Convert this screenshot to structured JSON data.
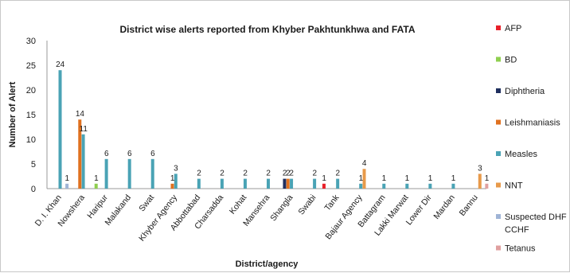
{
  "chart_data": {
    "type": "bar",
    "title": "District wise alerts reported from Khyber Pakhtunkhwa and FATA",
    "xlabel": "District/agency",
    "ylabel": "Number of Alert",
    "ylim": [
      0,
      30
    ],
    "yticks": [
      "0",
      "5",
      "10",
      "15",
      "20",
      "25",
      "30"
    ],
    "grid": false,
    "legend_position": "right",
    "categories": [
      "D. I. Khan",
      "Nowshera",
      "Haripur",
      "Malakand",
      "Swat",
      "Khyber Agency",
      "Abbottabad",
      "Charsadda",
      "Kohat",
      "Mansehra",
      "Shangla",
      "Swabi",
      "Tank",
      "Bajaur Agency",
      "Battagram",
      "Lakki Marwat",
      "Lower Dir",
      "Mardan",
      "Bannu"
    ],
    "series": [
      {
        "name": "AFP",
        "color": "#e8202a",
        "values": [
          0,
          0,
          0,
          0,
          0,
          0,
          0,
          0,
          0,
          0,
          0,
          0,
          1,
          0,
          0,
          0,
          0,
          0,
          0
        ]
      },
      {
        "name": "BD",
        "color": "#8fcf4f",
        "values": [
          0,
          0,
          1,
          0,
          0,
          0,
          0,
          0,
          0,
          0,
          0,
          0,
          0,
          0,
          0,
          0,
          0,
          0,
          0
        ]
      },
      {
        "name": "Diphtheria",
        "color": "#1f2f5e",
        "values": [
          0,
          0,
          0,
          0,
          0,
          0,
          0,
          0,
          0,
          0,
          2,
          0,
          0,
          0,
          0,
          0,
          0,
          0,
          0
        ]
      },
      {
        "name": "Leishmaniasis",
        "color": "#e0711f",
        "values": [
          0,
          14,
          0,
          0,
          0,
          1,
          0,
          0,
          0,
          0,
          2,
          0,
          0,
          0,
          0,
          0,
          0,
          0,
          0
        ]
      },
      {
        "name": "Measles",
        "color": "#4aa3b5",
        "values": [
          24,
          11,
          6,
          6,
          6,
          3,
          2,
          2,
          2,
          2,
          2,
          2,
          2,
          1,
          1,
          1,
          1,
          1,
          0
        ]
      },
      {
        "name": "NNT",
        "color": "#e89a4a",
        "values": [
          0,
          0,
          0,
          0,
          0,
          0,
          0,
          0,
          0,
          0,
          0,
          0,
          0,
          4,
          0,
          0,
          0,
          0,
          3
        ]
      },
      {
        "name": "Suspected DHF CCHF",
        "color": "#9fb4d6",
        "values": [
          1,
          0,
          0,
          0,
          0,
          0,
          0,
          0,
          0,
          0,
          0,
          0,
          0,
          0,
          0,
          0,
          0,
          0,
          0
        ]
      },
      {
        "name": "Tetanus",
        "color": "#e0a0a0",
        "values": [
          0,
          0,
          0,
          0,
          0,
          0,
          0,
          0,
          0,
          0,
          0,
          0,
          0,
          0,
          0,
          0,
          0,
          0,
          1
        ]
      }
    ],
    "data_labels": [
      {
        "category": "D. I. Khan",
        "series": "Measles",
        "text": "24"
      },
      {
        "category": "D. I. Khan",
        "series": "Suspected DHF CCHF",
        "text": "1"
      },
      {
        "category": "Nowshera",
        "series": "Leishmaniasis",
        "text": "14"
      },
      {
        "category": "Nowshera",
        "series": "Measles",
        "text": "11"
      },
      {
        "category": "Haripur",
        "series": "BD",
        "text": "1"
      },
      {
        "category": "Haripur",
        "series": "Measles",
        "text": "6"
      },
      {
        "category": "Malakand",
        "series": "Measles",
        "text": "6"
      },
      {
        "category": "Swat",
        "series": "Measles",
        "text": "6"
      },
      {
        "category": "Khyber Agency",
        "series": "Leishmaniasis",
        "text": "1"
      },
      {
        "category": "Khyber Agency",
        "series": "Measles",
        "text": "3"
      },
      {
        "category": "Abbottabad",
        "series": "Measles",
        "text": "2"
      },
      {
        "category": "Charsadda",
        "series": "Measles",
        "text": "2"
      },
      {
        "category": "Kohat",
        "series": "Measles",
        "text": "2"
      },
      {
        "category": "Mansehra",
        "series": "Measles",
        "text": "2"
      },
      {
        "category": "Shangla",
        "series": "Diphtheria",
        "text": "2"
      },
      {
        "category": "Shangla",
        "series": "Leishmaniasis",
        "text": "2"
      },
      {
        "category": "Shangla",
        "series": "Measles",
        "text": "2"
      },
      {
        "category": "Swabi",
        "series": "Measles",
        "text": "2"
      },
      {
        "category": "Tank",
        "series": "AFP",
        "text": "1"
      },
      {
        "category": "Tank",
        "series": "Measles",
        "text": "2"
      },
      {
        "category": "Bajaur Agency",
        "series": "Measles",
        "text": "1"
      },
      {
        "category": "Bajaur Agency",
        "series": "NNT",
        "text": "4"
      },
      {
        "category": "Battagram",
        "series": "Measles",
        "text": "1"
      },
      {
        "category": "Lakki Marwat",
        "series": "Measles",
        "text": "1"
      },
      {
        "category": "Lower Dir",
        "series": "Measles",
        "text": "1"
      },
      {
        "category": "Mardan",
        "series": "Measles",
        "text": "1"
      },
      {
        "category": "Bannu",
        "series": "NNT",
        "text": "3"
      },
      {
        "category": "Bannu",
        "series": "Tetanus",
        "text": "1"
      }
    ]
  }
}
